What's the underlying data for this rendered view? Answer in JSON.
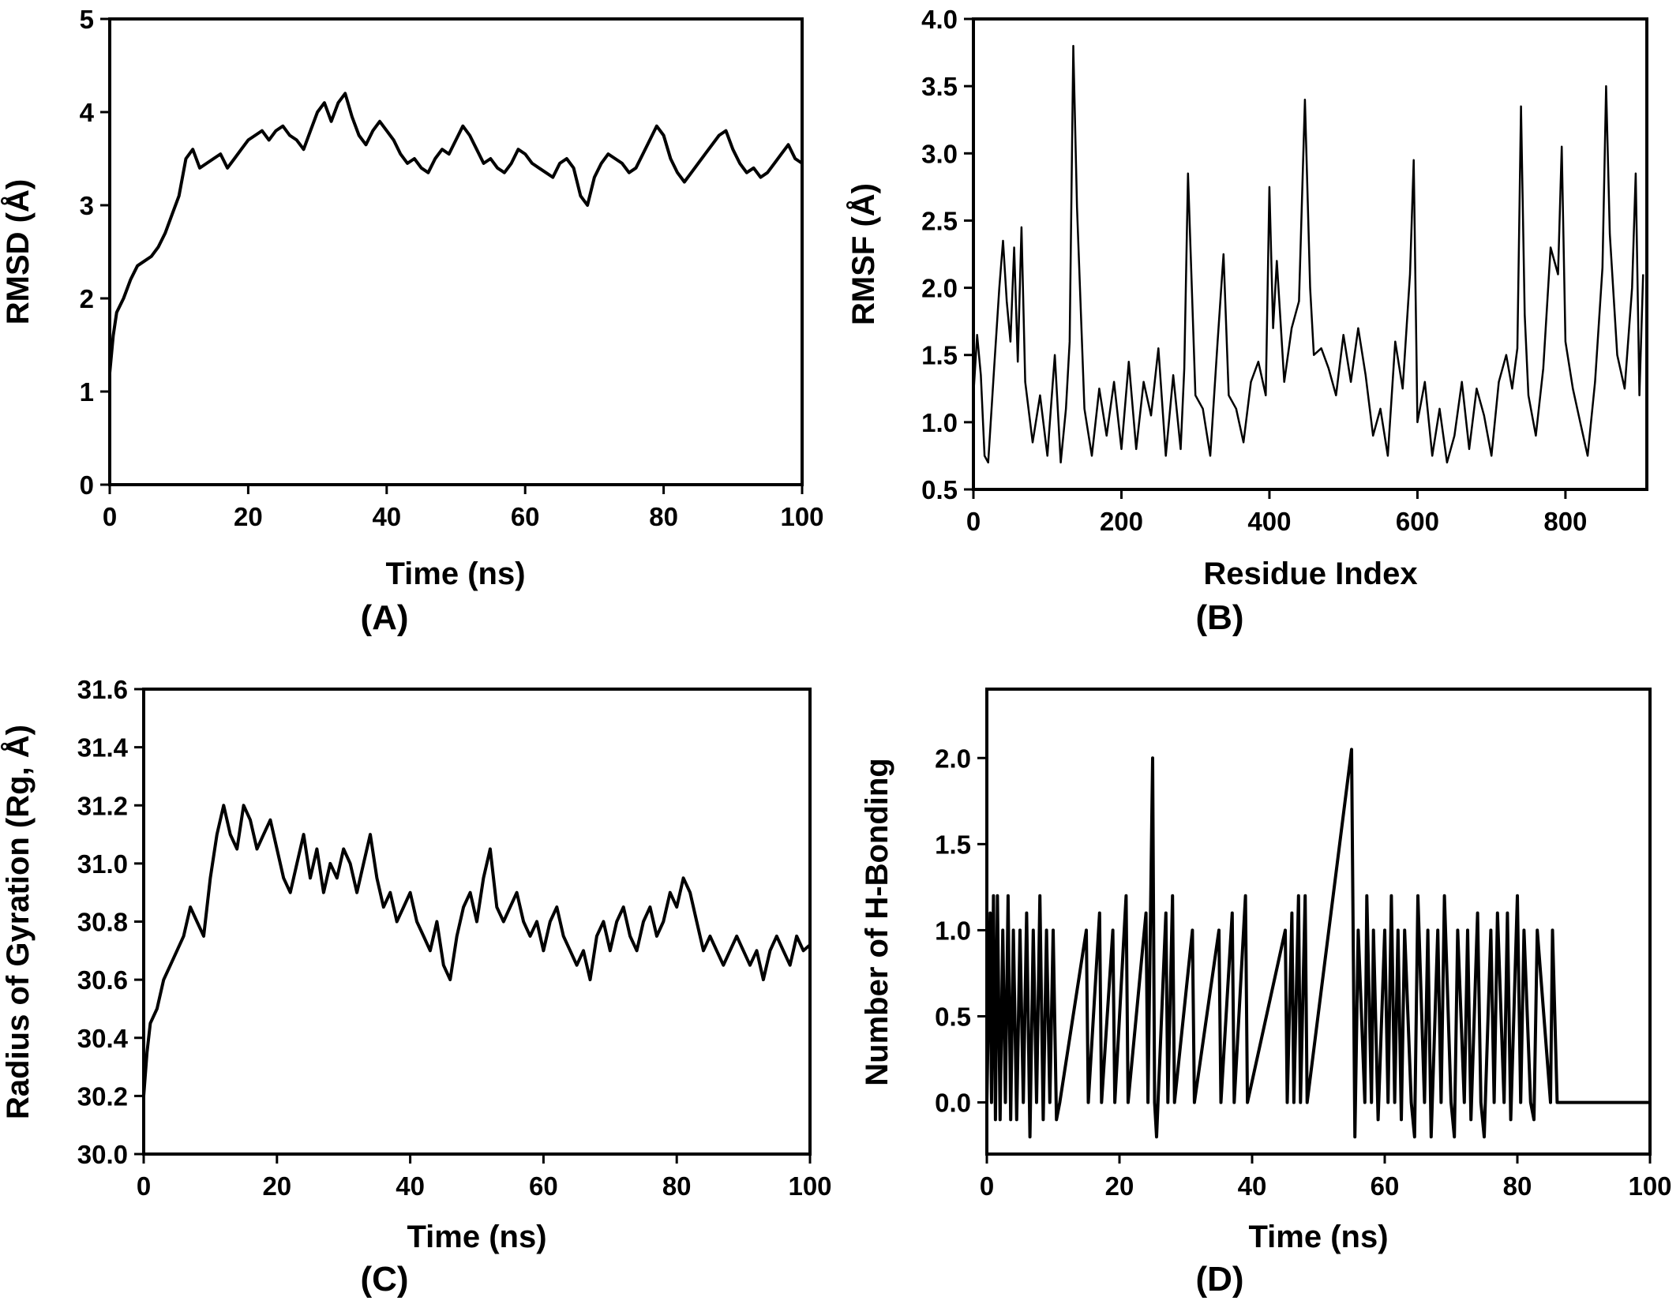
{
  "figure": {
    "line_color": "#000000",
    "background": "#ffffff"
  },
  "chart_data": [
    {
      "id": "A",
      "panel_label": "(A)",
      "type": "line",
      "xlabel": "Time (ns)",
      "ylabel": "RMSD (Å)",
      "xlim": [
        0,
        100
      ],
      "ylim": [
        0,
        5
      ],
      "xticks": [
        0,
        20,
        40,
        60,
        80,
        100
      ],
      "yticks": [
        0,
        1,
        2,
        3,
        4,
        5
      ],
      "tick_decimals": 0,
      "grid": false,
      "series": [
        {
          "x": [
            0,
            0.5,
            1,
            2,
            3,
            4,
            5,
            6,
            7,
            8,
            9,
            10,
            11,
            12,
            13,
            14,
            15,
            16,
            17,
            18,
            19,
            20,
            21,
            22,
            23,
            24,
            25,
            26,
            27,
            28,
            29,
            30,
            31,
            32,
            33,
            34,
            35,
            36,
            37,
            38,
            39,
            40,
            41,
            42,
            43,
            44,
            45,
            46,
            47,
            48,
            49,
            50,
            51,
            52,
            53,
            54,
            55,
            56,
            57,
            58,
            59,
            60,
            61,
            62,
            63,
            64,
            65,
            66,
            67,
            68,
            69,
            70,
            71,
            72,
            73,
            74,
            75,
            76,
            77,
            78,
            79,
            80,
            81,
            82,
            83,
            84,
            85,
            86,
            87,
            88,
            89,
            90,
            91,
            92,
            93,
            94,
            95,
            96,
            97,
            98,
            99,
            100
          ],
          "y": [
            1.2,
            1.6,
            1.85,
            2.0,
            2.2,
            2.35,
            2.4,
            2.45,
            2.55,
            2.7,
            2.9,
            3.1,
            3.5,
            3.6,
            3.4,
            3.45,
            3.5,
            3.55,
            3.4,
            3.5,
            3.6,
            3.7,
            3.75,
            3.8,
            3.7,
            3.8,
            3.85,
            3.75,
            3.7,
            3.6,
            3.8,
            4.0,
            4.1,
            3.9,
            4.1,
            4.2,
            3.95,
            3.75,
            3.65,
            3.8,
            3.9,
            3.8,
            3.7,
            3.55,
            3.45,
            3.5,
            3.4,
            3.35,
            3.5,
            3.6,
            3.55,
            3.7,
            3.85,
            3.75,
            3.6,
            3.45,
            3.5,
            3.4,
            3.35,
            3.45,
            3.6,
            3.55,
            3.45,
            3.4,
            3.35,
            3.3,
            3.45,
            3.5,
            3.4,
            3.1,
            3.0,
            3.3,
            3.45,
            3.55,
            3.5,
            3.45,
            3.35,
            3.4,
            3.55,
            3.7,
            3.85,
            3.75,
            3.5,
            3.35,
            3.25,
            3.35,
            3.45,
            3.55,
            3.65,
            3.75,
            3.8,
            3.6,
            3.45,
            3.35,
            3.4,
            3.3,
            3.35,
            3.45,
            3.55,
            3.65,
            3.5,
            3.45
          ]
        }
      ]
    },
    {
      "id": "B",
      "panel_label": "(B)",
      "type": "line",
      "xlabel": "Residue Index",
      "ylabel": "RMSF (Å)",
      "xlim": [
        0,
        910
      ],
      "ylim": [
        0.5,
        4.0
      ],
      "xticks": [
        0,
        200,
        400,
        600,
        800
      ],
      "yticks": [
        0.5,
        1.0,
        1.5,
        2.0,
        2.5,
        3.0,
        3.5,
        4.0
      ],
      "tick_decimals": 1,
      "grid": false,
      "series": [
        {
          "x": [
            0,
            5,
            10,
            15,
            20,
            28,
            35,
            40,
            45,
            50,
            55,
            60,
            65,
            70,
            80,
            90,
            100,
            110,
            118,
            125,
            130,
            135,
            140,
            150,
            160,
            170,
            180,
            190,
            200,
            210,
            220,
            230,
            240,
            250,
            260,
            270,
            280,
            285,
            290,
            300,
            310,
            320,
            330,
            338,
            345,
            355,
            365,
            375,
            385,
            395,
            400,
            405,
            410,
            420,
            430,
            440,
            448,
            455,
            460,
            470,
            480,
            490,
            500,
            510,
            520,
            530,
            540,
            550,
            560,
            570,
            580,
            590,
            595,
            600,
            610,
            620,
            630,
            640,
            650,
            660,
            670,
            680,
            690,
            700,
            710,
            720,
            728,
            735,
            740,
            745,
            750,
            760,
            770,
            780,
            790,
            795,
            800,
            810,
            820,
            830,
            840,
            850,
            855,
            860,
            870,
            880,
            890,
            895,
            900,
            905
          ],
          "y": [
            1.2,
            1.65,
            1.35,
            0.75,
            0.7,
            1.4,
            2.0,
            2.35,
            1.9,
            1.6,
            2.3,
            1.45,
            2.45,
            1.3,
            0.85,
            1.2,
            0.75,
            1.5,
            0.7,
            1.1,
            1.6,
            3.8,
            2.6,
            1.1,
            0.75,
            1.25,
            0.9,
            1.3,
            0.8,
            1.45,
            0.8,
            1.3,
            1.05,
            1.55,
            0.75,
            1.35,
            0.8,
            1.4,
            2.85,
            1.2,
            1.1,
            0.75,
            1.6,
            2.25,
            1.2,
            1.1,
            0.85,
            1.3,
            1.45,
            1.2,
            2.75,
            1.7,
            2.2,
            1.3,
            1.7,
            1.9,
            3.4,
            2.0,
            1.5,
            1.55,
            1.4,
            1.2,
            1.65,
            1.3,
            1.7,
            1.35,
            0.9,
            1.1,
            0.75,
            1.6,
            1.25,
            2.1,
            2.95,
            1.0,
            1.3,
            0.75,
            1.1,
            0.7,
            0.9,
            1.3,
            0.8,
            1.25,
            1.05,
            0.75,
            1.3,
            1.5,
            1.25,
            1.55,
            3.35,
            1.8,
            1.2,
            0.9,
            1.4,
            2.3,
            2.1,
            3.05,
            1.6,
            1.25,
            1.0,
            0.75,
            1.3,
            2.15,
            3.5,
            2.4,
            1.5,
            1.25,
            2.0,
            2.85,
            1.2,
            2.1
          ]
        }
      ]
    },
    {
      "id": "C",
      "panel_label": "(C)",
      "type": "line",
      "xlabel": "Time (ns)",
      "ylabel": "Radius of Gyration (Rg, Å)",
      "xlim": [
        0,
        100
      ],
      "ylim": [
        30.0,
        31.6
      ],
      "xticks": [
        0,
        20,
        40,
        60,
        80,
        100
      ],
      "yticks": [
        30.0,
        30.2,
        30.4,
        30.6,
        30.8,
        31.0,
        31.2,
        31.4,
        31.6
      ],
      "tick_decimals": 1,
      "grid": false,
      "series": [
        {
          "x": [
            0,
            0.5,
            1,
            2,
            3,
            4,
            5,
            6,
            7,
            8,
            9,
            10,
            11,
            12,
            13,
            14,
            15,
            16,
            17,
            18,
            19,
            20,
            21,
            22,
            23,
            24,
            25,
            26,
            27,
            28,
            29,
            30,
            31,
            32,
            33,
            34,
            35,
            36,
            37,
            38,
            39,
            40,
            41,
            42,
            43,
            44,
            45,
            46,
            47,
            48,
            49,
            50,
            51,
            52,
            53,
            54,
            55,
            56,
            57,
            58,
            59,
            60,
            61,
            62,
            63,
            64,
            65,
            66,
            67,
            68,
            69,
            70,
            71,
            72,
            73,
            74,
            75,
            76,
            77,
            78,
            79,
            80,
            81,
            82,
            83,
            84,
            85,
            86,
            87,
            88,
            89,
            90,
            91,
            92,
            93,
            94,
            95,
            96,
            97,
            98,
            99,
            100
          ],
          "y": [
            30.2,
            30.35,
            30.45,
            30.5,
            30.6,
            30.65,
            30.7,
            30.75,
            30.85,
            30.8,
            30.75,
            30.95,
            31.1,
            31.2,
            31.1,
            31.05,
            31.2,
            31.15,
            31.05,
            31.1,
            31.15,
            31.05,
            30.95,
            30.9,
            31.0,
            31.1,
            30.95,
            31.05,
            30.9,
            31.0,
            30.95,
            31.05,
            31.0,
            30.9,
            31.0,
            31.1,
            30.95,
            30.85,
            30.9,
            30.8,
            30.85,
            30.9,
            30.8,
            30.75,
            30.7,
            30.8,
            30.65,
            30.6,
            30.75,
            30.85,
            30.9,
            30.8,
            30.95,
            31.05,
            30.85,
            30.8,
            30.85,
            30.9,
            30.8,
            30.75,
            30.8,
            30.7,
            30.8,
            30.85,
            30.75,
            30.7,
            30.65,
            30.7,
            30.6,
            30.75,
            30.8,
            30.7,
            30.8,
            30.85,
            30.75,
            30.7,
            30.8,
            30.85,
            30.75,
            30.8,
            30.9,
            30.85,
            30.95,
            30.9,
            30.8,
            30.7,
            30.75,
            30.7,
            30.65,
            30.7,
            30.75,
            30.7,
            30.65,
            30.7,
            30.6,
            30.7,
            30.75,
            30.7,
            30.65,
            30.75,
            30.7,
            30.72
          ]
        }
      ]
    },
    {
      "id": "D",
      "panel_label": "(D)",
      "type": "line",
      "xlabel": "Time (ns)",
      "ylabel": "Number of H-Bonding",
      "xlim": [
        0,
        100
      ],
      "ylim": [
        -0.3,
        2.4
      ],
      "xticks": [
        0,
        20,
        40,
        60,
        80,
        100
      ],
      "yticks": [
        0.0,
        0.5,
        1.0,
        1.5,
        2.0
      ],
      "tick_decimals": 1,
      "grid": false,
      "series": [
        {
          "x": [
            0,
            0.5,
            0.7,
            1.0,
            1.3,
            1.6,
            2.0,
            2.4,
            2.8,
            3.2,
            3.6,
            4.0,
            4.5,
            5.0,
            5.5,
            6.0,
            6.5,
            7.0,
            7.5,
            8.0,
            8.5,
            9.0,
            9.5,
            10.0,
            10.5,
            11.0,
            15.0,
            15.3,
            17.0,
            17.3,
            19.0,
            19.3,
            21.0,
            21.3,
            24.0,
            24.3,
            25.0,
            25.3,
            25.6,
            27.0,
            27.3,
            28.0,
            28.3,
            31.0,
            31.3,
            35.0,
            35.3,
            37.0,
            37.3,
            39.0,
            39.3,
            45.0,
            45.3,
            46.0,
            46.3,
            47.0,
            47.3,
            48.0,
            48.3,
            55.0,
            55.5,
            56.0,
            57.0,
            57.3,
            58.0,
            58.3,
            59.0,
            60.0,
            60.5,
            61.0,
            61.5,
            62.0,
            62.5,
            63.0,
            64.0,
            64.5,
            65.0,
            66.0,
            66.5,
            67.0,
            68.0,
            68.5,
            69.0,
            70.0,
            70.5,
            71.0,
            72.0,
            72.5,
            73.0,
            74.0,
            74.5,
            75.0,
            76.0,
            76.5,
            77.0,
            78.0,
            78.5,
            79.0,
            80.0,
            80.5,
            81.0,
            82.0,
            82.5,
            83.0,
            85.0,
            85.3,
            86.0,
            100
          ],
          "y": [
            0,
            1.1,
            0,
            1.2,
            -0.1,
            1.2,
            -0.1,
            1.0,
            0,
            1.2,
            -0.1,
            1.0,
            -0.1,
            1.0,
            0,
            1.1,
            -0.2,
            1.0,
            0,
            1.2,
            -0.1,
            1.0,
            0,
            1.0,
            -0.1,
            0,
            1.0,
            0,
            1.1,
            0,
            1.0,
            0,
            1.2,
            0,
            1.1,
            0,
            2.0,
            0,
            -0.2,
            1.1,
            0,
            1.2,
            0,
            1.0,
            0,
            1.0,
            0,
            1.1,
            0,
            1.2,
            0,
            1.0,
            0,
            1.1,
            0,
            1.2,
            0,
            1.2,
            0,
            2.05,
            -0.2,
            1.0,
            0,
            1.2,
            0,
            1.0,
            -0.1,
            1.0,
            0,
            1.2,
            0,
            1.0,
            -0.1,
            1.0,
            0,
            -0.2,
            1.2,
            0,
            1.0,
            -0.2,
            1.0,
            0,
            1.2,
            0,
            -0.2,
            1.0,
            0,
            1.0,
            -0.1,
            1.1,
            0,
            -0.2,
            1.0,
            0,
            1.1,
            0,
            1.1,
            -0.1,
            1.2,
            0,
            1.0,
            0,
            -0.1,
            1.0,
            0,
            1.0,
            0,
            0
          ]
        }
      ]
    }
  ]
}
